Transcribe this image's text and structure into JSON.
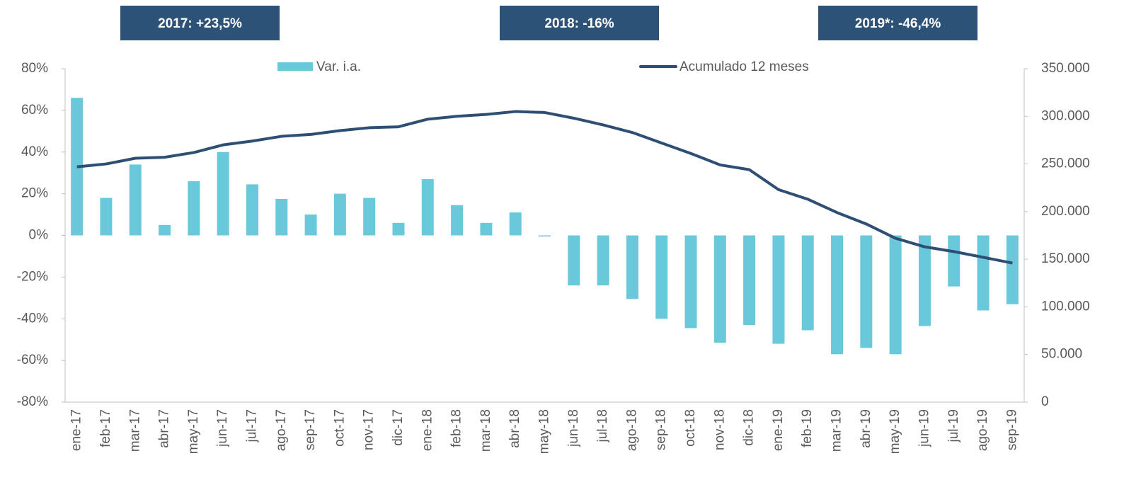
{
  "chart_data": {
    "type": "bar-line",
    "annotations": [
      "2017:  +23,5%",
      "2018:  -16%",
      "2019*:  -46,4%"
    ],
    "categories": [
      "ene-17",
      "feb-17",
      "mar-17",
      "abr-17",
      "may-17",
      "jun-17",
      "jul-17",
      "ago-17",
      "sep-17",
      "oct-17",
      "nov-17",
      "dic-17",
      "ene-18",
      "feb-18",
      "mar-18",
      "abr-18",
      "may-18",
      "jun-18",
      "jul-18",
      "ago-18",
      "sep-18",
      "oct-18",
      "nov-18",
      "dic-18",
      "ene-19",
      "feb-19",
      "mar-19",
      "abr-19",
      "may-19",
      "jun-19",
      "jul-19",
      "ago-19",
      "sep-19"
    ],
    "series": [
      {
        "name": "Var. i.a.",
        "color": "#69c8d9",
        "kind": "bar",
        "axis": "y",
        "values": [
          66,
          18,
          34,
          5,
          26,
          40,
          24.5,
          17.5,
          10,
          20,
          18,
          6,
          27,
          14.5,
          6,
          11,
          -0.5,
          -24,
          -24,
          -30.5,
          -40,
          -44.5,
          -51.5,
          -43,
          -52,
          -45.5,
          -57,
          -54,
          -57,
          -43.5,
          -24.5,
          -36,
          -33
        ]
      },
      {
        "name": "Acumulado 12 meses",
        "color": "#2e4f73",
        "kind": "line",
        "axis": "y2",
        "values": [
          247000,
          250000,
          256000,
          257000,
          262000,
          270000,
          274000,
          279000,
          281000,
          285000,
          288000,
          289000,
          297000,
          300000,
          302000,
          305000,
          304000,
          298000,
          291000,
          283000,
          272000,
          261000,
          249000,
          244000,
          223000,
          213000,
          199000,
          187000,
          172000,
          163000,
          158000,
          152000,
          146000
        ]
      }
    ],
    "ylim": [
      -80,
      80
    ],
    "yticks": [
      {
        "value": -80,
        "label": "-80%"
      },
      {
        "value": -60,
        "label": "-60%"
      },
      {
        "value": -40,
        "label": "-40%"
      },
      {
        "value": -20,
        "label": "-20%"
      },
      {
        "value": 0,
        "label": "0%"
      },
      {
        "value": 20,
        "label": "20%"
      },
      {
        "value": 40,
        "label": "40%"
      },
      {
        "value": 60,
        "label": "60%"
      },
      {
        "value": 80,
        "label": "80%"
      }
    ],
    "y2lim": [
      0,
      350000
    ],
    "y2ticks": [
      0,
      {
        "value": 50000,
        "label": "50.000"
      },
      {
        "value": 100000,
        "label": "100.000"
      },
      {
        "value": 150000,
        "label": "150.000"
      },
      {
        "value": 200000,
        "label": "200.000"
      },
      {
        "value": 250000,
        "label": "250.000"
      },
      {
        "value": 300000,
        "label": "300.000"
      },
      {
        "value": 350000,
        "label": "350.000"
      }
    ],
    "grid": false
  }
}
